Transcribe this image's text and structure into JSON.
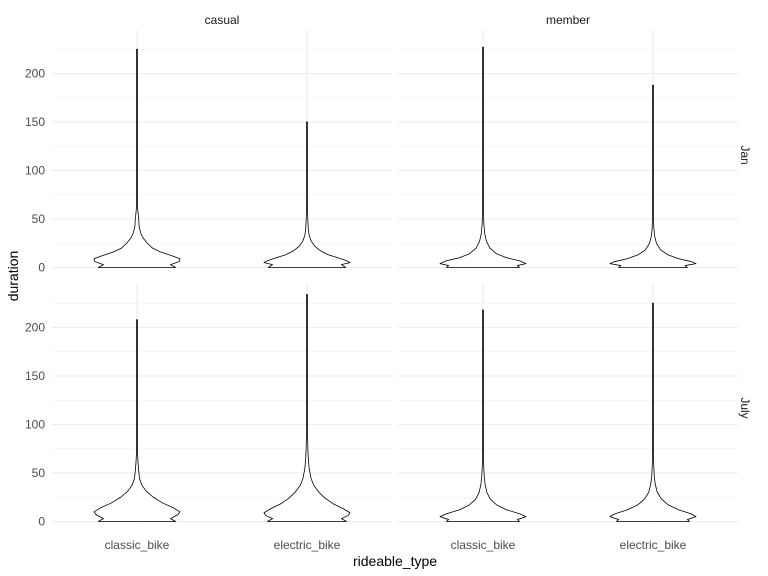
{
  "chart_data": {
    "type": "violin",
    "title": "",
    "xlabel": "rideable_type",
    "ylabel": "duration",
    "categories": [
      "classic_bike",
      "electric_bike"
    ],
    "facet_columns": [
      "casual",
      "member"
    ],
    "facet_rows": [
      "Jan",
      "July"
    ],
    "ylim": [
      -2,
      228
    ],
    "yticks": [
      0,
      50,
      100,
      150,
      200
    ],
    "grid": true,
    "legend": "none",
    "colors": {
      "outline": "#000000",
      "fill": "#ffffff",
      "grid_major": "#ebebeb",
      "grid_minor": "#f2f2f2",
      "text": "#4d4d4d"
    },
    "panels": [
      {
        "column": "casual",
        "row": "Jan",
        "violins": [
          {
            "category": "classic_bike",
            "max": 225,
            "width_profile": [
              [
                0,
                0.9
              ],
              [
                3,
                0.78
              ],
              [
                6,
                0.98
              ],
              [
                9,
                1.0
              ],
              [
                12,
                0.82
              ],
              [
                16,
                0.55
              ],
              [
                20,
                0.36
              ],
              [
                25,
                0.24
              ],
              [
                30,
                0.15
              ],
              [
                35,
                0.09
              ],
              [
                42,
                0.05
              ],
              [
                50,
                0.04
              ],
              [
                56,
                0.025
              ],
              [
                62,
                0.012
              ],
              [
                75,
                0.006
              ],
              [
                85,
                0.01
              ],
              [
                90,
                0.007
              ],
              [
                95,
                0.004
              ],
              [
                120,
                0.002
              ],
              [
                150,
                0.002
              ],
              [
                225,
                0.002
              ]
            ]
          },
          {
            "category": "electric_bike",
            "max": 150,
            "width_profile": [
              [
                0,
                0.9
              ],
              [
                3,
                0.8
              ],
              [
                5,
                1.0
              ],
              [
                7,
                0.92
              ],
              [
                10,
                0.72
              ],
              [
                13,
                0.5
              ],
              [
                17,
                0.32
              ],
              [
                22,
                0.18
              ],
              [
                27,
                0.1
              ],
              [
                33,
                0.05
              ],
              [
                40,
                0.03
              ],
              [
                50,
                0.018
              ],
              [
                60,
                0.01
              ],
              [
                70,
                0.012
              ],
              [
                78,
                0.015
              ],
              [
                82,
                0.006
              ],
              [
                100,
                0.003
              ],
              [
                150,
                0.002
              ]
            ]
          }
        ]
      },
      {
        "column": "member",
        "row": "Jan",
        "violins": [
          {
            "category": "classic_bike",
            "max": 227,
            "width_profile": [
              [
                0,
                0.85
              ],
              [
                2,
                0.8
              ],
              [
                4,
                1.0
              ],
              [
                7,
                0.85
              ],
              [
                10,
                0.55
              ],
              [
                14,
                0.32
              ],
              [
                20,
                0.16
              ],
              [
                27,
                0.08
              ],
              [
                35,
                0.04
              ],
              [
                45,
                0.02
              ],
              [
                55,
                0.012
              ],
              [
                60,
                0.008
              ],
              [
                70,
                0.004
              ],
              [
                100,
                0.002
              ],
              [
                227,
                0.002
              ]
            ]
          },
          {
            "category": "electric_bike",
            "max": 188,
            "width_profile": [
              [
                0,
                0.8
              ],
              [
                2,
                0.75
              ],
              [
                4,
                1.0
              ],
              [
                6,
                0.9
              ],
              [
                9,
                0.6
              ],
              [
                13,
                0.35
              ],
              [
                18,
                0.18
              ],
              [
                25,
                0.08
              ],
              [
                32,
                0.04
              ],
              [
                40,
                0.02
              ],
              [
                50,
                0.012
              ],
              [
                60,
                0.008
              ],
              [
                68,
                0.01
              ],
              [
                75,
                0.004
              ],
              [
                100,
                0.002
              ],
              [
                188,
                0.002
              ]
            ]
          }
        ]
      },
      {
        "column": "casual",
        "row": "July",
        "violins": [
          {
            "category": "classic_bike",
            "max": 208,
            "width_profile": [
              [
                0,
                0.9
              ],
              [
                3,
                0.78
              ],
              [
                7,
                0.95
              ],
              [
                10,
                1.0
              ],
              [
                14,
                0.85
              ],
              [
                19,
                0.6
              ],
              [
                25,
                0.38
              ],
              [
                31,
                0.22
              ],
              [
                37,
                0.12
              ],
              [
                44,
                0.06
              ],
              [
                52,
                0.04
              ],
              [
                60,
                0.025
              ],
              [
                70,
                0.012
              ],
              [
                85,
                0.008
              ],
              [
                95,
                0.005
              ],
              [
                110,
                0.006
              ],
              [
                115,
                0.003
              ],
              [
                150,
                0.002
              ],
              [
                208,
                0.002
              ]
            ]
          },
          {
            "category": "electric_bike",
            "max": 234,
            "width_profile": [
              [
                0,
                0.92
              ],
              [
                3,
                0.8
              ],
              [
                6,
                0.95
              ],
              [
                9,
                1.0
              ],
              [
                13,
                0.85
              ],
              [
                18,
                0.62
              ],
              [
                24,
                0.42
              ],
              [
                30,
                0.28
              ],
              [
                37,
                0.16
              ],
              [
                45,
                0.09
              ],
              [
                55,
                0.05
              ],
              [
                65,
                0.03
              ],
              [
                75,
                0.02
              ],
              [
                90,
                0.012
              ],
              [
                100,
                0.008
              ],
              [
                105,
                0.012
              ],
              [
                110,
                0.006
              ],
              [
                120,
                0.004
              ],
              [
                160,
                0.002
              ],
              [
                234,
                0.002
              ]
            ]
          }
        ]
      },
      {
        "column": "member",
        "row": "July",
        "violins": [
          {
            "category": "classic_bike",
            "max": 218,
            "width_profile": [
              [
                0,
                0.85
              ],
              [
                2,
                0.8
              ],
              [
                5,
                1.0
              ],
              [
                8,
                0.85
              ],
              [
                12,
                0.55
              ],
              [
                17,
                0.32
              ],
              [
                23,
                0.17
              ],
              [
                30,
                0.09
              ],
              [
                38,
                0.05
              ],
              [
                46,
                0.03
              ],
              [
                55,
                0.018
              ],
              [
                62,
                0.012
              ],
              [
                70,
                0.005
              ],
              [
                100,
                0.002
              ],
              [
                218,
                0.002
              ]
            ]
          },
          {
            "category": "electric_bike",
            "max": 225,
            "width_profile": [
              [
                0,
                0.85
              ],
              [
                2,
                0.8
              ],
              [
                5,
                1.0
              ],
              [
                8,
                0.88
              ],
              [
                12,
                0.6
              ],
              [
                17,
                0.36
              ],
              [
                23,
                0.2
              ],
              [
                30,
                0.1
              ],
              [
                38,
                0.055
              ],
              [
                46,
                0.03
              ],
              [
                55,
                0.02
              ],
              [
                62,
                0.014
              ],
              [
                70,
                0.005
              ],
              [
                100,
                0.002
              ],
              [
                225,
                0.002
              ]
            ]
          }
        ]
      }
    ]
  }
}
